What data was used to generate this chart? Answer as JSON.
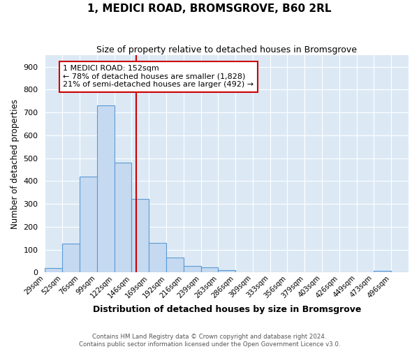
{
  "title": "1, MEDICI ROAD, BROMSGROVE, B60 2RL",
  "subtitle": "Size of property relative to detached houses in Bromsgrove",
  "xlabel": "Distribution of detached houses by size in Bromsgrove",
  "ylabel": "Number of detached properties",
  "bar_labels": [
    "29sqm",
    "52sqm",
    "76sqm",
    "99sqm",
    "122sqm",
    "146sqm",
    "169sqm",
    "192sqm",
    "216sqm",
    "239sqm",
    "263sqm",
    "286sqm",
    "309sqm",
    "333sqm",
    "356sqm",
    "379sqm",
    "403sqm",
    "426sqm",
    "449sqm",
    "473sqm",
    "496sqm"
  ],
  "bar_values": [
    20,
    125,
    420,
    730,
    480,
    320,
    130,
    65,
    27,
    22,
    10,
    0,
    0,
    0,
    0,
    0,
    0,
    0,
    0,
    8,
    0
  ],
  "bar_color": "#c5d9f0",
  "bar_edgecolor": "#5b9bd5",
  "property_line_x": 5,
  "property_line_color": "#cc0000",
  "annotation_text": "1 MEDICI ROAD: 152sqm\n← 78% of detached houses are smaller (1,828)\n21% of semi-detached houses are larger (492) →",
  "annotation_box_color": "#ffffff",
  "annotation_box_edgecolor": "#cc0000",
  "ylim": [
    0,
    950
  ],
  "yticks": [
    0,
    100,
    200,
    300,
    400,
    500,
    600,
    700,
    800,
    900
  ],
  "background_color": "#ffffff",
  "plot_background_color": "#dce9f5",
  "grid_color": "#ffffff",
  "footer": "Contains HM Land Registry data © Crown copyright and database right 2024.\nContains public sector information licensed under the Open Government Licence v3.0.",
  "bin_width": 1,
  "num_bins": 21
}
